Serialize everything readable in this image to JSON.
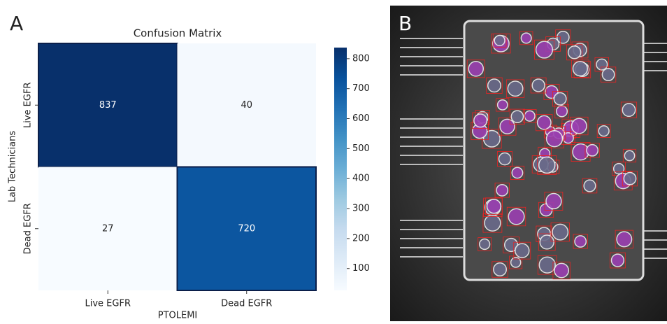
{
  "panel_labels": [
    "A",
    "B"
  ],
  "chart_data": {
    "type": "heatmap",
    "title": "Confusion Matrix",
    "x_label": "PTOLEMI",
    "y_label": "Lab Technicians",
    "x_categories": [
      "Live EGFR",
      "Dead EGFR"
    ],
    "y_categories": [
      "Live EGFR",
      "Dead EGFR"
    ],
    "values": [
      [
        837,
        40
      ],
      [
        27,
        720
      ]
    ],
    "colorbar_lim": [
      27,
      837
    ],
    "colorbar_ticks": [
      100,
      200,
      300,
      400,
      500,
      600,
      700,
      800
    ],
    "colormap": [
      "#f7fbff",
      "#deebf7",
      "#c6dbef",
      "#9ecae1",
      "#6baed6",
      "#4292c6",
      "#2171b5",
      "#08519c",
      "#08306b"
    ]
  }
}
